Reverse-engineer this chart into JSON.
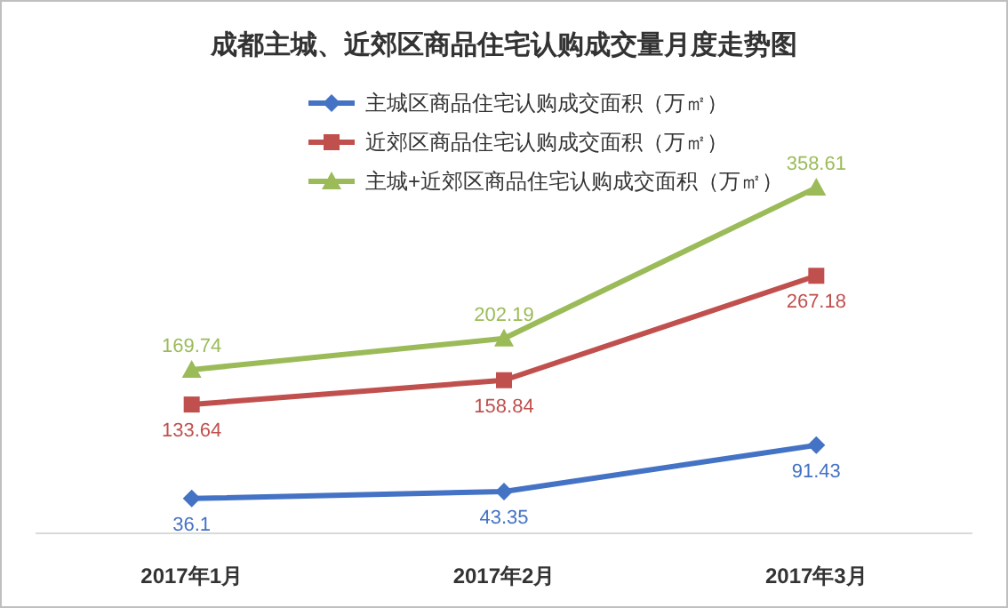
{
  "chart_data": {
    "type": "line",
    "title": "成都主城、近郊区商品住宅认购成交量月度走势图",
    "categories": [
      "2017年1月",
      "2017年2月",
      "2017年3月"
    ],
    "series": [
      {
        "name": "主城区商品住宅认购成交面积（万㎡）",
        "color": "#4472c4",
        "marker": "diamond",
        "values": [
          36.1,
          43.35,
          91.43
        ]
      },
      {
        "name": "近郊区商品住宅认购成交面积（万㎡）",
        "color": "#c0504d",
        "marker": "square",
        "values": [
          133.64,
          158.84,
          267.18
        ]
      },
      {
        "name": "主城+近郊区商品住宅认购成交面积（万㎡）",
        "color": "#9bbb59",
        "marker": "triangle",
        "values": [
          169.74,
          202.19,
          358.61
        ]
      }
    ],
    "data_labels": true,
    "legend": "top"
  }
}
